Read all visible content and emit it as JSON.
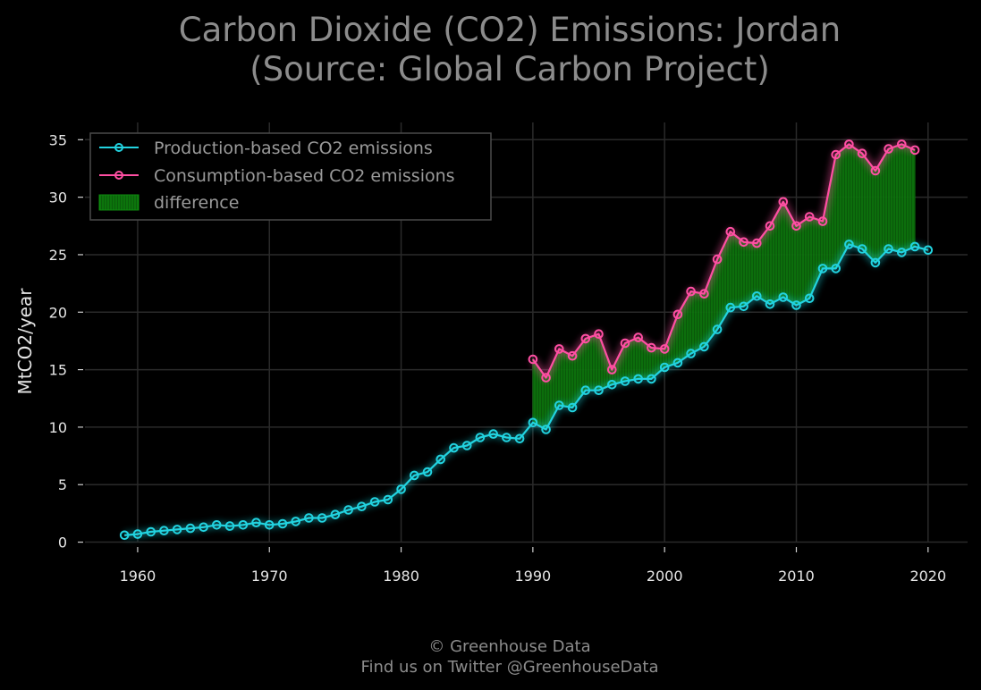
{
  "chart_data": {
    "type": "line",
    "title_line1": "Carbon Dioxide (CO2) Emissions: Jordan",
    "title_line2": "(Source: Global Carbon Project)",
    "ylabel": "MtCO2/year",
    "xlabel": "",
    "xlim": [
      1956,
      2023
    ],
    "ylim": [
      -1.2,
      36.5
    ],
    "x_ticks": [
      1960,
      1970,
      1980,
      1990,
      2000,
      2010,
      2020
    ],
    "y_ticks": [
      0,
      5,
      10,
      15,
      20,
      25,
      30,
      35
    ],
    "grid": true,
    "legend_position": "top-left",
    "series": [
      {
        "name": "Production-based CO2 emissions",
        "color": "#22d3e0",
        "x": [
          1959,
          1960,
          1961,
          1962,
          1963,
          1964,
          1965,
          1966,
          1967,
          1968,
          1969,
          1970,
          1971,
          1972,
          1973,
          1974,
          1975,
          1976,
          1977,
          1978,
          1979,
          1980,
          1981,
          1982,
          1983,
          1984,
          1985,
          1986,
          1987,
          1988,
          1989,
          1990,
          1991,
          1992,
          1993,
          1994,
          1995,
          1996,
          1997,
          1998,
          1999,
          2000,
          2001,
          2002,
          2003,
          2004,
          2005,
          2006,
          2007,
          2008,
          2009,
          2010,
          2011,
          2012,
          2013,
          2014,
          2015,
          2016,
          2017,
          2018,
          2019,
          2020
        ],
        "values": [
          0.6,
          0.7,
          0.9,
          1.0,
          1.1,
          1.2,
          1.3,
          1.5,
          1.4,
          1.5,
          1.7,
          1.5,
          1.6,
          1.8,
          2.1,
          2.1,
          2.4,
          2.8,
          3.1,
          3.5,
          3.7,
          4.6,
          5.8,
          6.1,
          7.2,
          8.2,
          8.4,
          9.1,
          9.4,
          9.1,
          9.0,
          10.4,
          9.8,
          11.9,
          11.7,
          13.2,
          13.2,
          13.7,
          14.0,
          14.2,
          14.2,
          15.2,
          15.6,
          16.4,
          17.0,
          18.5,
          20.4,
          20.5,
          21.4,
          20.7,
          21.3,
          20.6,
          21.2,
          23.8,
          23.8,
          25.9,
          25.5,
          24.3,
          25.5,
          25.2,
          25.7,
          25.4
        ]
      },
      {
        "name": "Consumption-based CO2 emissions",
        "color": "#ff4fa3",
        "x": [
          1990,
          1991,
          1992,
          1993,
          1994,
          1995,
          1996,
          1997,
          1998,
          1999,
          2000,
          2001,
          2002,
          2003,
          2004,
          2005,
          2006,
          2007,
          2008,
          2009,
          2010,
          2011,
          2012,
          2013,
          2014,
          2015,
          2016,
          2017,
          2018,
          2019
        ],
        "values": [
          15.9,
          14.3,
          16.8,
          16.2,
          17.7,
          18.1,
          15.0,
          17.3,
          17.8,
          16.9,
          16.8,
          19.8,
          21.8,
          21.6,
          24.6,
          27.0,
          26.1,
          26.0,
          27.5,
          29.6,
          27.5,
          28.3,
          27.9,
          33.7,
          34.6,
          33.8,
          32.3,
          34.2,
          34.6,
          34.1
        ]
      }
    ],
    "difference": {
      "name": "difference",
      "color": "#0a6b0a",
      "x_range": [
        1990,
        2019
      ]
    }
  },
  "footer": {
    "line1": "© Greenhouse Data",
    "line2": "Find us on Twitter @GreenhouseData"
  }
}
